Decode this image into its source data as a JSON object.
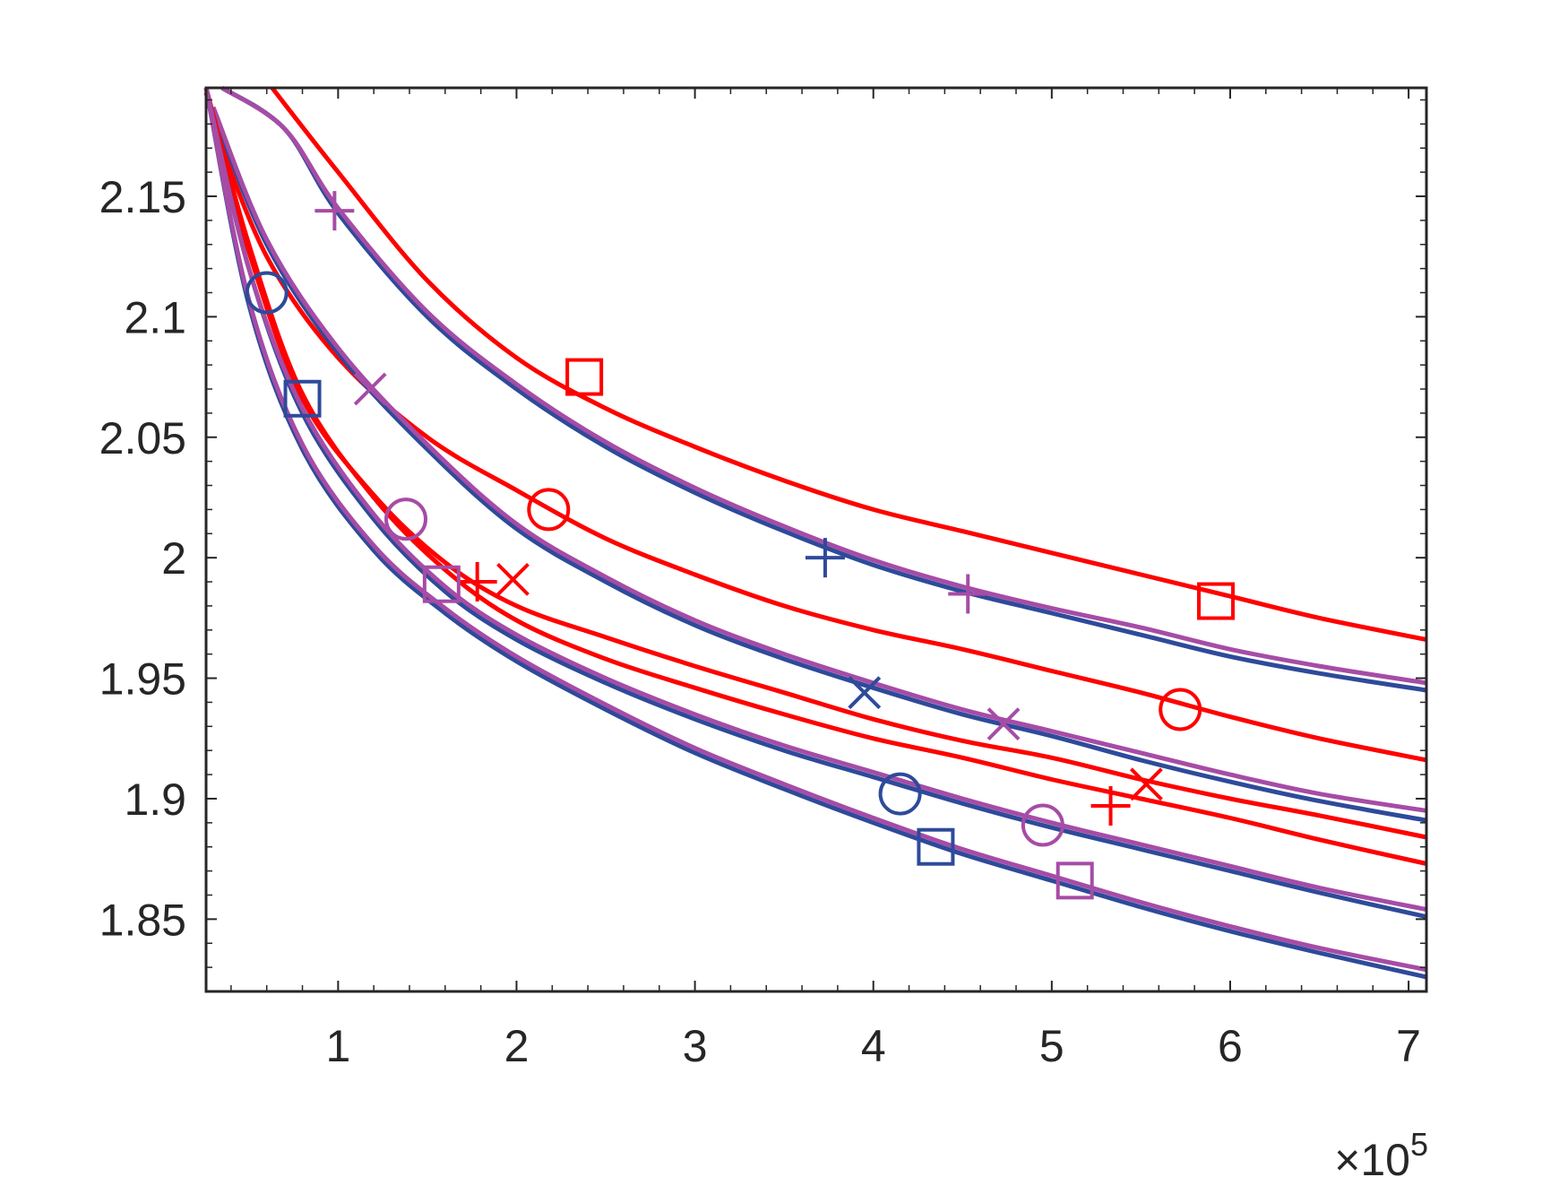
{
  "chart_data": {
    "type": "line",
    "title": "",
    "xlabel": "",
    "ylabel": "",
    "x_exponent_label": {
      "times": "×10",
      "power": "5"
    },
    "xlim": [
      0.26,
      7.1
    ],
    "ylim": [
      1.82,
      2.195
    ],
    "x_ticks": [
      1,
      2,
      3,
      4,
      5,
      6,
      7
    ],
    "x_tick_labels": [
      "1",
      "2",
      "3",
      "4",
      "5",
      "6",
      "7"
    ],
    "y_ticks": [
      1.85,
      1.9,
      1.95,
      2.0,
      2.05,
      2.1,
      2.15
    ],
    "y_tick_labels": [
      "1.85",
      "1.9",
      "1.95",
      "2",
      "2.05",
      "2.1",
      "2.15"
    ],
    "grid": false,
    "legend": null,
    "colors": {
      "red": "#ff0000",
      "blue": "#2e4a9a",
      "purple": "#a64ca6",
      "axis": "#262626"
    },
    "series": [
      {
        "color": "#ff0000",
        "marker": "square",
        "x": [
          0.63,
          1.0,
          1.5,
          2.0,
          2.5,
          3.0,
          3.5,
          4.0,
          4.5,
          5.0,
          5.5,
          6.0,
          6.5,
          7.1
        ],
        "y": [
          2.195,
          2.16,
          2.115,
          2.083,
          2.062,
          2.046,
          2.032,
          2.02,
          2.011,
          2.002,
          1.993,
          1.984,
          1.975,
          1.966
        ],
        "markers": [
          [
            2.38,
            2.075
          ],
          [
            5.92,
            1.982
          ]
        ]
      },
      {
        "color": "#2e4a9a",
        "marker": "plus",
        "x": [
          0.35,
          0.7,
          1.0,
          1.5,
          2.0,
          2.5,
          3.0,
          3.5,
          4.0,
          4.5,
          5.0,
          5.5,
          6.0,
          6.5,
          7.1
        ],
        "y": [
          2.195,
          2.178,
          2.143,
          2.1,
          2.07,
          2.046,
          2.027,
          2.011,
          1.997,
          1.986,
          1.977,
          1.968,
          1.959,
          1.952,
          1.945
        ],
        "markers": [
          [
            3.73,
            2.0
          ]
        ]
      },
      {
        "color": "#a64ca6",
        "marker": "plus",
        "x": [
          0.35,
          0.7,
          1.0,
          1.5,
          2.0,
          2.5,
          3.0,
          3.5,
          4.0,
          4.5,
          5.0,
          5.5,
          6.0,
          6.5,
          7.1
        ],
        "y": [
          2.195,
          2.178,
          2.145,
          2.102,
          2.072,
          2.048,
          2.029,
          2.013,
          1.999,
          1.988,
          1.979,
          1.971,
          1.962,
          1.955,
          1.948
        ],
        "markers": [
          [
            0.98,
            2.144
          ],
          [
            4.53,
            1.985
          ]
        ]
      },
      {
        "color": "#ff0000",
        "marker": "circle",
        "x": [
          0.3,
          0.6,
          1.0,
          1.5,
          2.0,
          2.5,
          3.0,
          3.5,
          4.0,
          4.5,
          5.0,
          5.5,
          6.0,
          6.5,
          7.1
        ],
        "y": [
          2.18,
          2.125,
          2.083,
          2.05,
          2.028,
          2.008,
          1.993,
          1.98,
          1.97,
          1.962,
          1.953,
          1.944,
          1.934,
          1.925,
          1.916
        ],
        "markers": [
          [
            2.18,
            2.02
          ],
          [
            5.72,
            1.937
          ]
        ]
      },
      {
        "color": "#2e4a9a",
        "marker": "cross",
        "x": [
          0.3,
          0.6,
          1.0,
          1.5,
          2.0,
          2.5,
          3.0,
          3.5,
          4.0,
          4.5,
          5.0,
          5.5,
          6.0,
          6.5,
          7.1
        ],
        "y": [
          2.185,
          2.13,
          2.085,
          2.045,
          2.012,
          1.99,
          1.972,
          1.958,
          1.946,
          1.935,
          1.926,
          1.916,
          1.907,
          1.899,
          1.891
        ],
        "markers": [
          [
            3.95,
            1.944
          ]
        ]
      },
      {
        "color": "#a64ca6",
        "marker": "cross",
        "x": [
          0.3,
          0.6,
          1.0,
          1.5,
          2.0,
          2.5,
          3.0,
          3.5,
          4.0,
          4.5,
          5.0,
          5.5,
          6.0,
          6.5,
          7.1
        ],
        "y": [
          2.187,
          2.132,
          2.087,
          2.047,
          2.014,
          1.992,
          1.974,
          1.96,
          1.948,
          1.937,
          1.928,
          1.919,
          1.91,
          1.902,
          1.895
        ],
        "markers": [
          [
            1.18,
            2.07
          ],
          [
            4.73,
            1.931
          ]
        ]
      },
      {
        "color": "#ff0000",
        "marker": "plus",
        "x": [
          0.26,
          0.5,
          0.8,
          1.2,
          1.6,
          2.0,
          2.5,
          3.0,
          3.5,
          4.0,
          4.5,
          5.0,
          5.5,
          6.0,
          6.5,
          7.1
        ],
        "y": [
          2.195,
          2.13,
          2.068,
          2.025,
          1.995,
          1.974,
          1.958,
          1.946,
          1.935,
          1.925,
          1.917,
          1.908,
          1.9,
          1.892,
          1.883,
          1.873
        ],
        "markers": [
          [
            1.78,
            1.99
          ],
          [
            5.33,
            1.897
          ]
        ]
      },
      {
        "color": "#ff0000",
        "marker": "cross",
        "x": [
          0.26,
          0.5,
          0.8,
          1.2,
          1.6,
          2.0,
          2.5,
          3.0,
          3.5,
          4.0,
          4.5,
          5.0,
          5.5,
          6.0,
          6.5,
          7.1
        ],
        "y": [
          2.193,
          2.127,
          2.066,
          2.026,
          1.998,
          1.98,
          1.967,
          1.955,
          1.944,
          1.933,
          1.924,
          1.917,
          1.908,
          1.9,
          1.893,
          1.884
        ],
        "markers": [
          [
            1.98,
            1.991
          ],
          [
            5.53,
            1.906
          ]
        ]
      },
      {
        "color": "#2e4a9a",
        "marker": "circle",
        "x": [
          0.26,
          0.5,
          0.8,
          1.2,
          1.6,
          2.0,
          2.5,
          3.0,
          3.5,
          4.0,
          4.5,
          5.0,
          5.5,
          6.0,
          6.5,
          7.1
        ],
        "y": [
          2.195,
          2.12,
          2.06,
          2.016,
          1.986,
          1.966,
          1.948,
          1.933,
          1.92,
          1.909,
          1.898,
          1.888,
          1.879,
          1.87,
          1.861,
          1.851
        ],
        "markers": [
          [
            0.6,
            2.11
          ],
          [
            4.15,
            1.902
          ]
        ]
      },
      {
        "color": "#a64ca6",
        "marker": "circle",
        "x": [
          0.26,
          0.5,
          0.8,
          1.2,
          1.6,
          2.0,
          2.5,
          3.0,
          3.5,
          4.0,
          4.5,
          5.0,
          5.5,
          6.0,
          6.5,
          7.1
        ],
        "y": [
          2.195,
          2.12,
          2.062,
          2.018,
          1.988,
          1.968,
          1.95,
          1.935,
          1.922,
          1.911,
          1.9,
          1.89,
          1.881,
          1.872,
          1.863,
          1.854
        ],
        "markers": [
          [
            1.38,
            2.016
          ],
          [
            4.95,
            1.889
          ]
        ]
      },
      {
        "color": "#2e4a9a",
        "marker": "square",
        "x": [
          0.26,
          0.5,
          0.8,
          1.2,
          1.6,
          2.0,
          2.5,
          3.0,
          3.5,
          4.0,
          4.5,
          5.0,
          5.5,
          6.0,
          6.5,
          7.1
        ],
        "y": [
          2.195,
          2.105,
          2.045,
          2.003,
          1.977,
          1.957,
          1.937,
          1.919,
          1.904,
          1.89,
          1.877,
          1.866,
          1.855,
          1.845,
          1.836,
          1.826
        ],
        "markers": [
          [
            0.8,
            2.066
          ],
          [
            4.35,
            1.88
          ]
        ]
      },
      {
        "color": "#a64ca6",
        "marker": "square",
        "x": [
          0.26,
          0.5,
          0.8,
          1.2,
          1.6,
          2.0,
          2.5,
          3.0,
          3.5,
          4.0,
          4.5,
          5.0,
          5.5,
          6.0,
          6.5,
          7.1
        ],
        "y": [
          2.195,
          2.107,
          2.047,
          2.005,
          1.979,
          1.959,
          1.939,
          1.921,
          1.906,
          1.892,
          1.879,
          1.868,
          1.857,
          1.847,
          1.838,
          1.829
        ],
        "markers": [
          [
            1.58,
            1.989
          ],
          [
            5.13,
            1.866
          ]
        ]
      }
    ]
  }
}
